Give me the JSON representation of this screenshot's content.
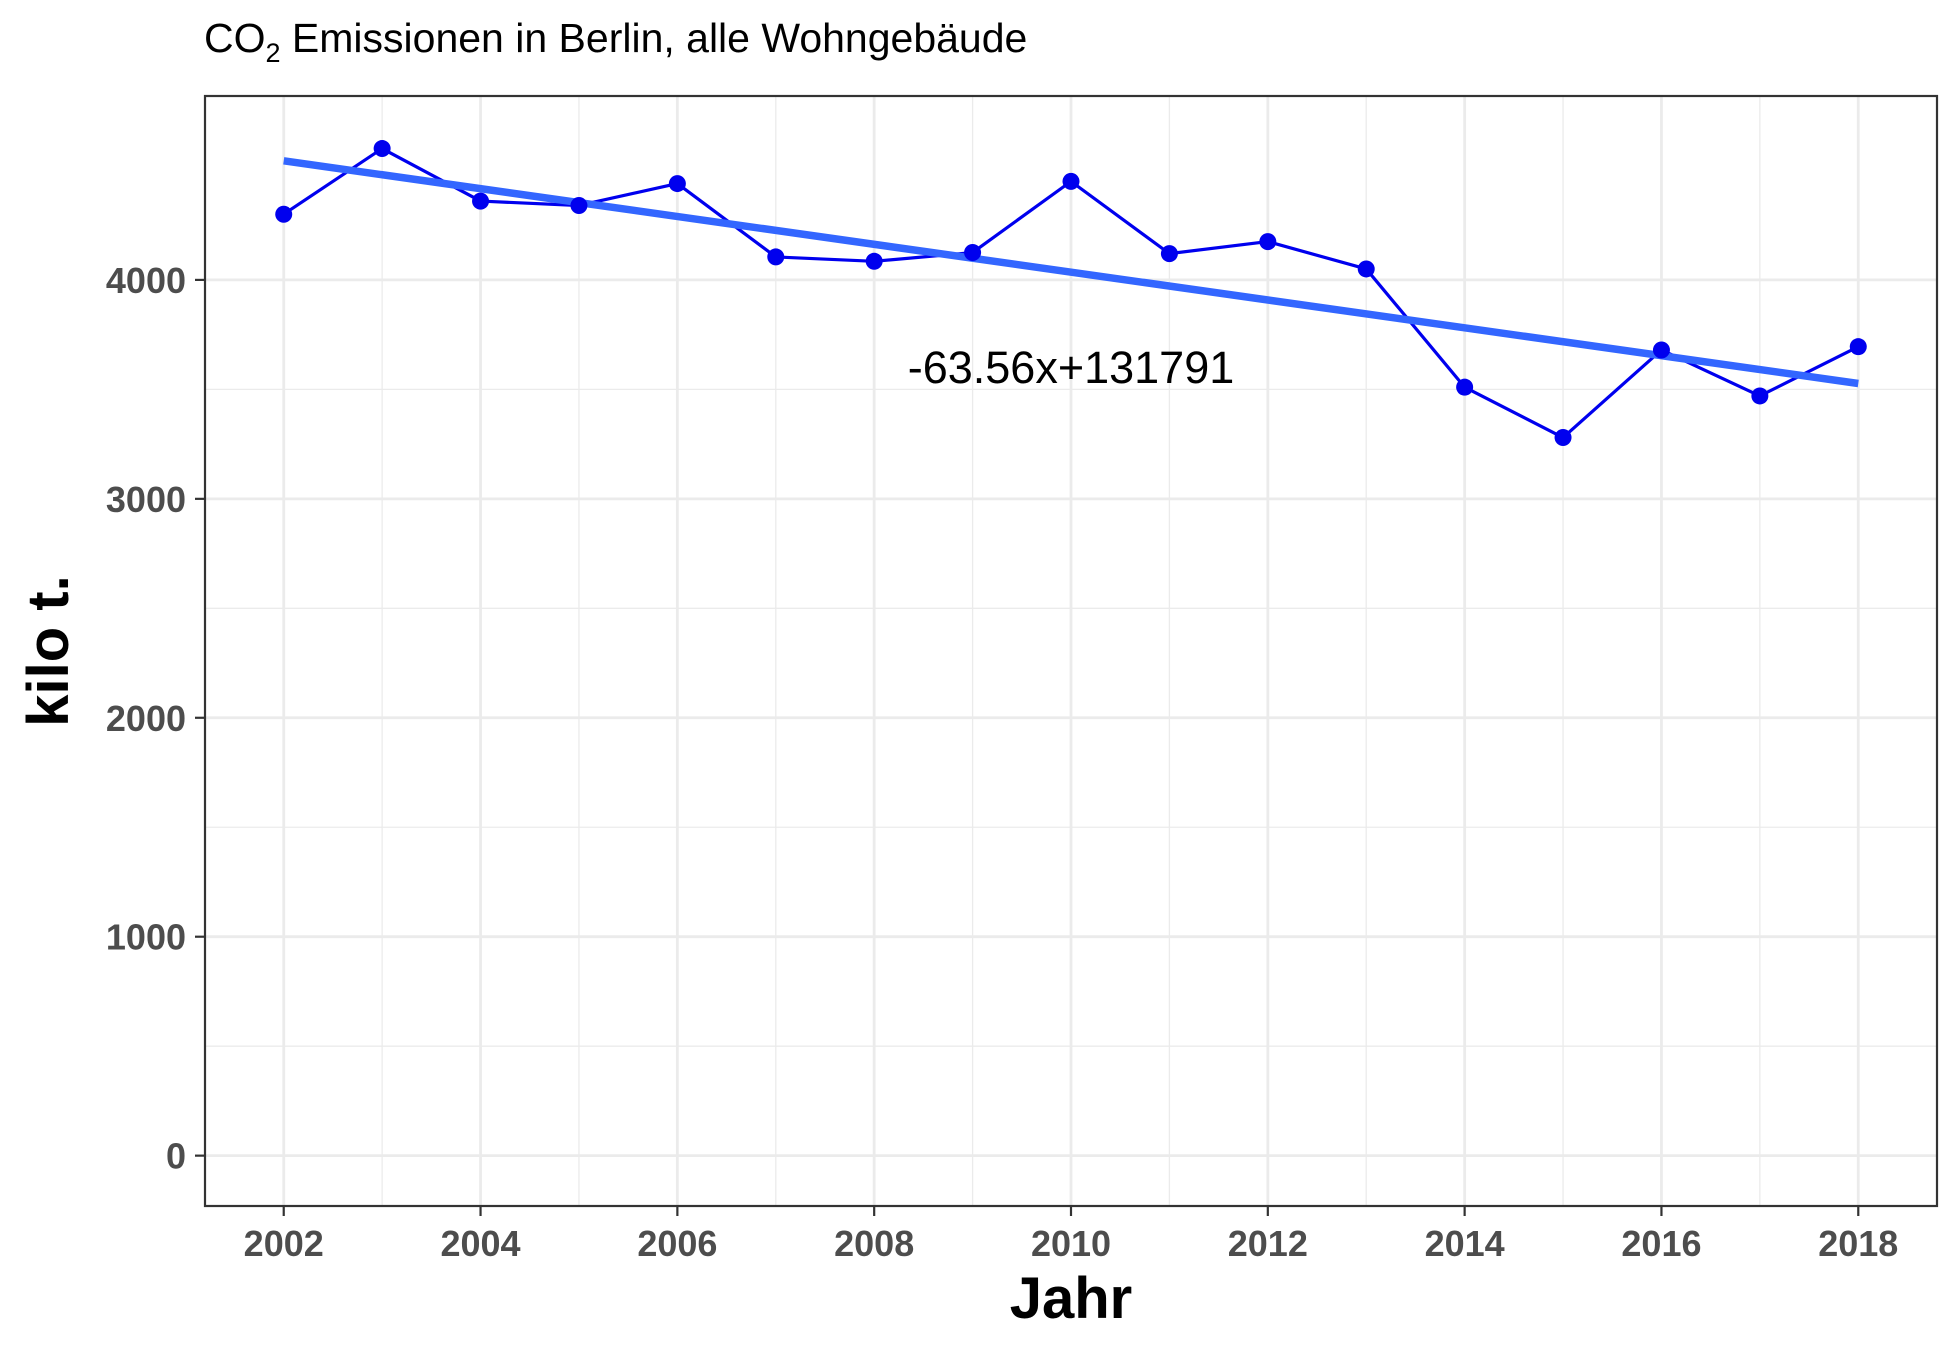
{
  "chart_data": {
    "type": "line",
    "title_prefix": "CO",
    "title_subscript": "2",
    "title_rest": " Emissionen in Berlin, alle Wohngebäude",
    "xlabel": "Jahr",
    "ylabel": "kilo t.",
    "xlim": [
      2001.2,
      2018.8
    ],
    "ylim": [
      -230,
      4840
    ],
    "x_ticks": [
      2002,
      2004,
      2006,
      2008,
      2010,
      2012,
      2014,
      2016,
      2018
    ],
    "x_tick_labels": [
      "2002",
      "2004",
      "2006",
      "2008",
      "2010",
      "2012",
      "2014",
      "2016",
      "2018"
    ],
    "y_ticks": [
      0,
      1000,
      2000,
      3000,
      4000
    ],
    "y_tick_labels": [
      "0",
      "1000",
      "2000",
      "3000",
      "4000"
    ],
    "grid": true,
    "series": [
      {
        "x": [
          2002,
          2003,
          2004,
          2005,
          2006,
          2007,
          2008,
          2009,
          2010,
          2011,
          2012,
          2013,
          2014,
          2015,
          2016,
          2017,
          2018
        ],
        "y": [
          4300,
          4600,
          4360,
          4340,
          4440,
          4105,
          4085,
          4125,
          4450,
          4120,
          4175,
          4050,
          3510,
          3280,
          3680,
          3470,
          3695
        ],
        "color": "#0000ee"
      }
    ],
    "trendline": {
      "slope": -63.56,
      "intercept": 131791,
      "x_range": [
        2002,
        2018
      ],
      "color": "#3366ff",
      "label": "-63.56x+131791"
    },
    "annotation_position": {
      "x": 2010,
      "y": 3530
    }
  }
}
